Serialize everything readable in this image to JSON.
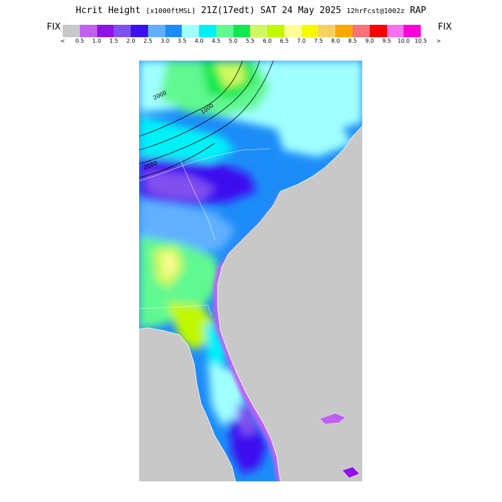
{
  "title": {
    "field": "Hcrit Height",
    "units": "[x1000ftMSL]",
    "valid": "21Z(17edt)",
    "date": "SAT 24 May 2025",
    "forecast": "12hrFcst@1002z",
    "model": "RAP"
  },
  "fix_left": "FIX",
  "fix_right": "FIX",
  "colorbar": {
    "arrow_left": "<",
    "arrow_right": ">",
    "ticks": [
      "0.5",
      "1.0",
      "1.5",
      "2.0",
      "2.5",
      "3.0",
      "3.5",
      "4.0",
      "4.5",
      "5.0",
      "5.5",
      "6.0",
      "6.5",
      "7.0",
      "7.5",
      "8.0",
      "8.5",
      "9.0",
      "9.5",
      "10.0",
      "10.5"
    ],
    "colors": [
      "#c8c8c8",
      "#c060f0",
      "#9010e8",
      "#8050f0",
      "#3c10f0",
      "#60b0ff",
      "#1c8cf8",
      "#a0ffff",
      "#00f0f8",
      "#60f890",
      "#10e850",
      "#d0f860",
      "#c0f800",
      "#ffff98",
      "#f8f800",
      "#f8d060",
      "#f8a800",
      "#f87078",
      "#f80000",
      "#f870f0",
      "#f800d8"
    ]
  },
  "map": {
    "background_color": "#c8c8c8",
    "contour_labels": [
      "2000",
      "1000",
      "2000"
    ]
  }
}
